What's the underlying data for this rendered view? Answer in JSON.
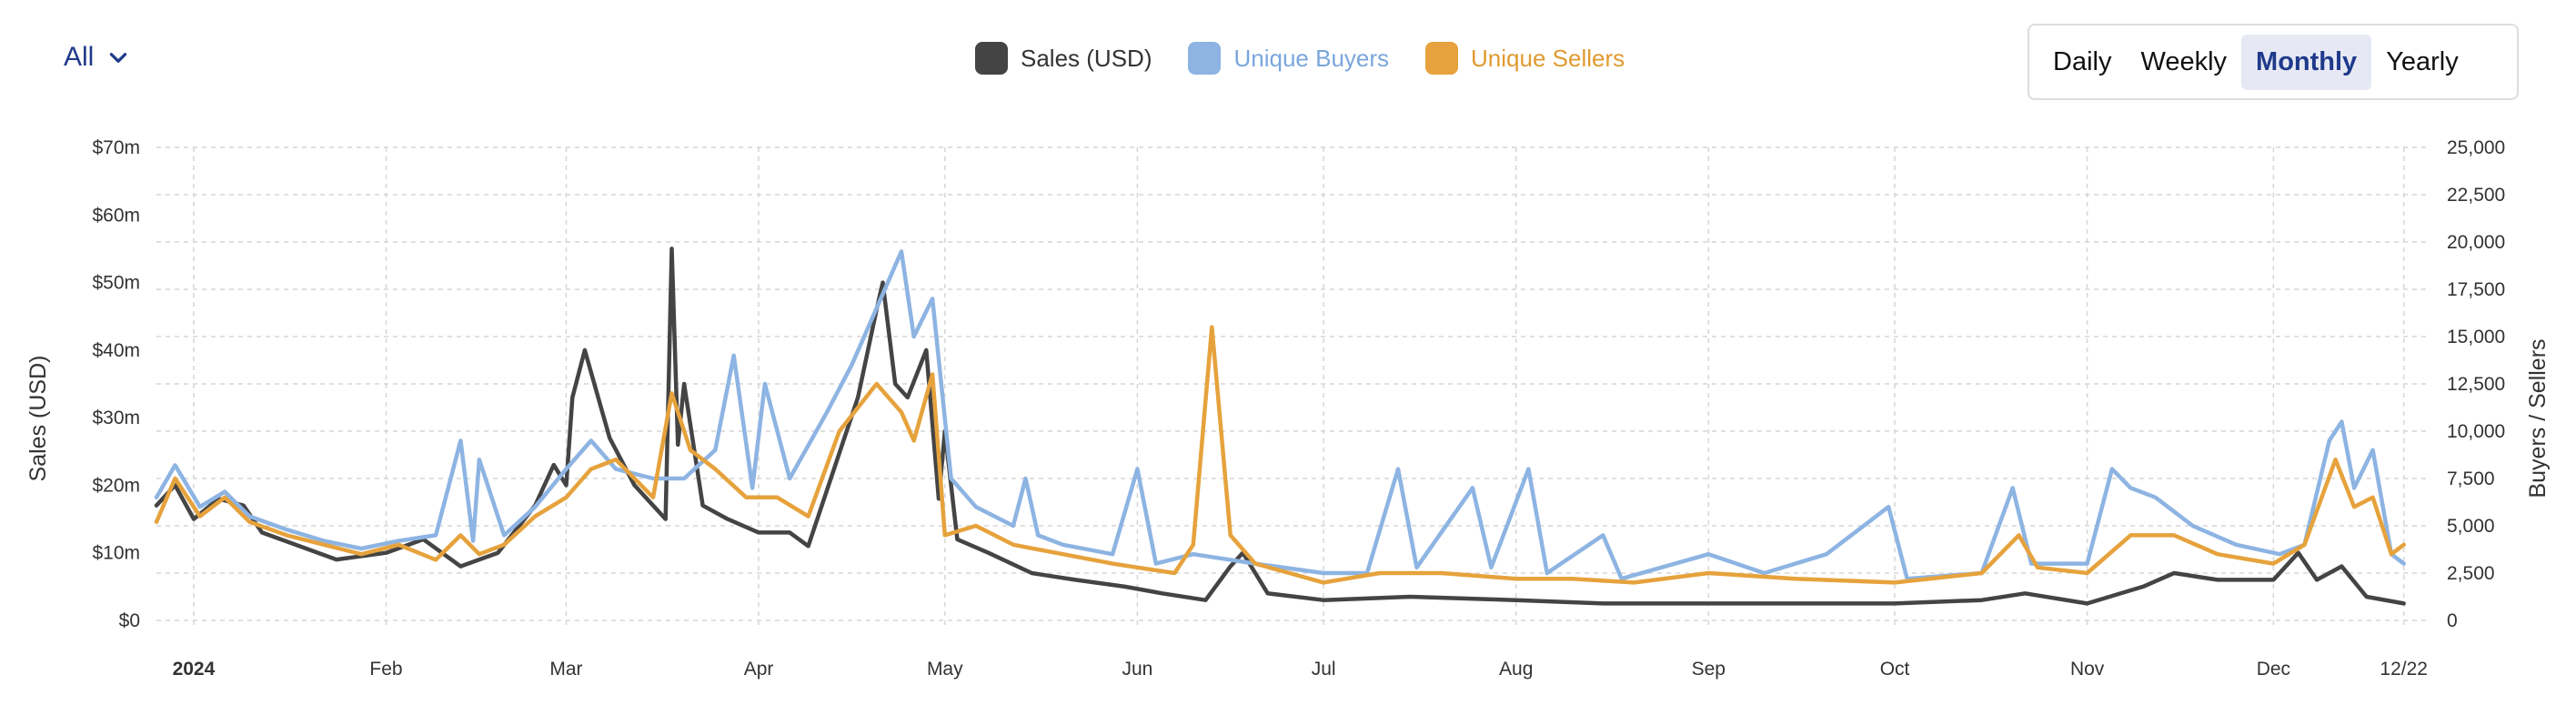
{
  "filter": {
    "label": "All"
  },
  "periods": [
    {
      "label": "Daily",
      "active": false
    },
    {
      "label": "Weekly",
      "active": false
    },
    {
      "label": "Monthly",
      "active": true
    },
    {
      "label": "Yearly",
      "active": false
    }
  ],
  "colors": {
    "sales": "#444444",
    "buyers": "#8db4e2",
    "sellers": "#e6a23c",
    "accent": "#1f3a8a"
  },
  "chart_data": {
    "type": "line",
    "xlabel": "",
    "ylabel_left": "Sales (USD)",
    "ylabel_right": "Buyers / Sellers",
    "ylim_left": [
      0,
      70
    ],
    "ylim_right": [
      0,
      25000
    ],
    "y_ticks_left": [
      "$0",
      "$10m",
      "$20m",
      "$30m",
      "$40m",
      "$50m",
      "$60m",
      "$70m"
    ],
    "y_ticks_right": [
      "0",
      "2,500",
      "5,000",
      "7,500",
      "10,000",
      "12,500",
      "15,000",
      "17,500",
      "20,000",
      "22,500",
      "25,000"
    ],
    "x_ticks": [
      {
        "label": "2024",
        "date": "2024-01-01",
        "bold": true
      },
      {
        "label": "Feb",
        "date": "2024-02-01"
      },
      {
        "label": "Mar",
        "date": "2024-03-01"
      },
      {
        "label": "Apr",
        "date": "2024-04-01"
      },
      {
        "label": "May",
        "date": "2024-05-01"
      },
      {
        "label": "Jun",
        "date": "2024-06-01"
      },
      {
        "label": "Jul",
        "date": "2024-07-01"
      },
      {
        "label": "Aug",
        "date": "2024-08-01"
      },
      {
        "label": "Sep",
        "date": "2024-09-01"
      },
      {
        "label": "Oct",
        "date": "2024-10-01"
      },
      {
        "label": "Nov",
        "date": "2024-11-01"
      },
      {
        "label": "Dec",
        "date": "2024-12-01"
      },
      {
        "label": "12/22",
        "date": "2024-12-22"
      }
    ],
    "x_range": [
      "2023-12-26",
      "2024-12-26"
    ],
    "grid": true,
    "legend": "top-center",
    "series": [
      {
        "name": "Sales (USD)",
        "axis": "left",
        "color": "#444444",
        "points": [
          [
            "2023-12-26",
            17
          ],
          [
            "2023-12-29",
            20
          ],
          [
            "2024-01-01",
            15
          ],
          [
            "2024-01-05",
            18
          ],
          [
            "2024-01-09",
            17
          ],
          [
            "2024-01-12",
            13
          ],
          [
            "2024-01-18",
            11
          ],
          [
            "2024-01-24",
            9
          ],
          [
            "2024-02-01",
            10
          ],
          [
            "2024-02-07",
            12
          ],
          [
            "2024-02-13",
            8
          ],
          [
            "2024-02-19",
            10
          ],
          [
            "2024-02-25",
            17
          ],
          [
            "2024-02-28",
            23
          ],
          [
            "2024-03-01",
            20
          ],
          [
            "2024-03-02",
            33
          ],
          [
            "2024-03-04",
            40
          ],
          [
            "2024-03-08",
            27
          ],
          [
            "2024-03-12",
            20
          ],
          [
            "2024-03-15",
            17
          ],
          [
            "2024-03-17",
            15
          ],
          [
            "2024-03-18",
            55
          ],
          [
            "2024-03-19",
            26
          ],
          [
            "2024-03-20",
            35
          ],
          [
            "2024-03-23",
            17
          ],
          [
            "2024-03-27",
            15
          ],
          [
            "2024-04-01",
            13
          ],
          [
            "2024-04-06",
            13
          ],
          [
            "2024-04-09",
            11
          ],
          [
            "2024-04-13",
            22
          ],
          [
            "2024-04-17",
            33
          ],
          [
            "2024-04-20",
            46
          ],
          [
            "2024-04-21",
            50
          ],
          [
            "2024-04-23",
            35
          ],
          [
            "2024-04-25",
            33
          ],
          [
            "2024-04-28",
            40
          ],
          [
            "2024-04-30",
            18
          ],
          [
            "2024-05-01",
            28
          ],
          [
            "2024-05-03",
            12
          ],
          [
            "2024-05-08",
            10
          ],
          [
            "2024-05-15",
            7
          ],
          [
            "2024-05-22",
            6
          ],
          [
            "2024-05-30",
            5
          ],
          [
            "2024-06-05",
            4
          ],
          [
            "2024-06-12",
            3
          ],
          [
            "2024-06-16",
            8
          ],
          [
            "2024-06-18",
            10
          ],
          [
            "2024-06-22",
            4
          ],
          [
            "2024-07-01",
            3
          ],
          [
            "2024-07-15",
            3.5
          ],
          [
            "2024-08-01",
            3
          ],
          [
            "2024-08-15",
            2.5
          ],
          [
            "2024-09-01",
            2.5
          ],
          [
            "2024-09-15",
            2.5
          ],
          [
            "2024-10-01",
            2.5
          ],
          [
            "2024-10-15",
            3
          ],
          [
            "2024-10-22",
            4
          ],
          [
            "2024-11-01",
            2.5
          ],
          [
            "2024-11-10",
            5
          ],
          [
            "2024-11-15",
            7
          ],
          [
            "2024-11-22",
            6
          ],
          [
            "2024-12-01",
            6
          ],
          [
            "2024-12-05",
            10
          ],
          [
            "2024-12-08",
            6
          ],
          [
            "2024-12-12",
            8
          ],
          [
            "2024-12-16",
            3.5
          ],
          [
            "2024-12-22",
            2.5
          ]
        ]
      },
      {
        "name": "Unique Buyers",
        "axis": "right",
        "color": "#8db4e2",
        "points": [
          [
            "2023-12-26",
            6500
          ],
          [
            "2023-12-29",
            8200
          ],
          [
            "2024-01-02",
            6000
          ],
          [
            "2024-01-06",
            6800
          ],
          [
            "2024-01-10",
            5500
          ],
          [
            "2024-01-16",
            4800
          ],
          [
            "2024-01-22",
            4200
          ],
          [
            "2024-01-28",
            3800
          ],
          [
            "2024-02-03",
            4200
          ],
          [
            "2024-02-09",
            4500
          ],
          [
            "2024-02-13",
            9500
          ],
          [
            "2024-02-15",
            4200
          ],
          [
            "2024-02-16",
            8500
          ],
          [
            "2024-02-20",
            4500
          ],
          [
            "2024-02-25",
            6000
          ],
          [
            "2024-03-01",
            8000
          ],
          [
            "2024-03-05",
            9500
          ],
          [
            "2024-03-09",
            8000
          ],
          [
            "2024-03-15",
            7500
          ],
          [
            "2024-03-20",
            7500
          ],
          [
            "2024-03-25",
            9000
          ],
          [
            "2024-03-28",
            14000
          ],
          [
            "2024-03-31",
            7000
          ],
          [
            "2024-04-02",
            12500
          ],
          [
            "2024-04-06",
            7500
          ],
          [
            "2024-04-12",
            11000
          ],
          [
            "2024-04-16",
            13500
          ],
          [
            "2024-04-20",
            16500
          ],
          [
            "2024-04-24",
            19500
          ],
          [
            "2024-04-26",
            15000
          ],
          [
            "2024-04-29",
            17000
          ],
          [
            "2024-05-02",
            7500
          ],
          [
            "2024-05-06",
            6000
          ],
          [
            "2024-05-12",
            5000
          ],
          [
            "2024-05-14",
            7500
          ],
          [
            "2024-05-16",
            4500
          ],
          [
            "2024-05-20",
            4000
          ],
          [
            "2024-05-28",
            3500
          ],
          [
            "2024-06-01",
            8000
          ],
          [
            "2024-06-04",
            3000
          ],
          [
            "2024-06-10",
            3500
          ],
          [
            "2024-06-20",
            3000
          ],
          [
            "2024-07-01",
            2500
          ],
          [
            "2024-07-08",
            2500
          ],
          [
            "2024-07-13",
            8000
          ],
          [
            "2024-07-16",
            2800
          ],
          [
            "2024-07-25",
            7000
          ],
          [
            "2024-07-28",
            2800
          ],
          [
            "2024-08-03",
            8000
          ],
          [
            "2024-08-06",
            2500
          ],
          [
            "2024-08-15",
            4500
          ],
          [
            "2024-08-18",
            2200
          ],
          [
            "2024-09-01",
            3500
          ],
          [
            "2024-09-10",
            2500
          ],
          [
            "2024-09-20",
            3500
          ],
          [
            "2024-09-30",
            6000
          ],
          [
            "2024-10-03",
            2200
          ],
          [
            "2024-10-15",
            2500
          ],
          [
            "2024-10-20",
            7000
          ],
          [
            "2024-10-23",
            3000
          ],
          [
            "2024-11-01",
            3000
          ],
          [
            "2024-11-05",
            8000
          ],
          [
            "2024-11-08",
            7000
          ],
          [
            "2024-11-12",
            6500
          ],
          [
            "2024-11-18",
            5000
          ],
          [
            "2024-11-25",
            4000
          ],
          [
            "2024-12-02",
            3500
          ],
          [
            "2024-12-06",
            4000
          ],
          [
            "2024-12-10",
            9500
          ],
          [
            "2024-12-12",
            10500
          ],
          [
            "2024-12-14",
            7000
          ],
          [
            "2024-12-17",
            9000
          ],
          [
            "2024-12-20",
            3500
          ],
          [
            "2024-12-22",
            3000
          ]
        ]
      },
      {
        "name": "Unique Sellers",
        "axis": "right",
        "color": "#e6a23c",
        "points": [
          [
            "2023-12-26",
            5200
          ],
          [
            "2023-12-29",
            7500
          ],
          [
            "2024-01-02",
            5500
          ],
          [
            "2024-01-06",
            6500
          ],
          [
            "2024-01-10",
            5200
          ],
          [
            "2024-01-16",
            4500
          ],
          [
            "2024-01-22",
            4000
          ],
          [
            "2024-01-28",
            3500
          ],
          [
            "2024-02-03",
            4000
          ],
          [
            "2024-02-09",
            3200
          ],
          [
            "2024-02-13",
            4500
          ],
          [
            "2024-02-16",
            3500
          ],
          [
            "2024-02-20",
            4000
          ],
          [
            "2024-02-25",
            5500
          ],
          [
            "2024-03-01",
            6500
          ],
          [
            "2024-03-05",
            8000
          ],
          [
            "2024-03-09",
            8500
          ],
          [
            "2024-03-15",
            6500
          ],
          [
            "2024-03-18",
            12000
          ],
          [
            "2024-03-21",
            9000
          ],
          [
            "2024-03-25",
            8000
          ],
          [
            "2024-03-30",
            6500
          ],
          [
            "2024-04-04",
            6500
          ],
          [
            "2024-04-09",
            5500
          ],
          [
            "2024-04-14",
            10000
          ],
          [
            "2024-04-20",
            12500
          ],
          [
            "2024-04-24",
            11000
          ],
          [
            "2024-04-26",
            9500
          ],
          [
            "2024-04-29",
            13000
          ],
          [
            "2024-05-01",
            4500
          ],
          [
            "2024-05-06",
            5000
          ],
          [
            "2024-05-12",
            4000
          ],
          [
            "2024-05-20",
            3500
          ],
          [
            "2024-05-28",
            3000
          ],
          [
            "2024-06-01",
            2800
          ],
          [
            "2024-06-07",
            2500
          ],
          [
            "2024-06-10",
            4000
          ],
          [
            "2024-06-13",
            15500
          ],
          [
            "2024-06-16",
            4500
          ],
          [
            "2024-06-20",
            3000
          ],
          [
            "2024-07-01",
            2000
          ],
          [
            "2024-07-10",
            2500
          ],
          [
            "2024-07-20",
            2500
          ],
          [
            "2024-08-01",
            2200
          ],
          [
            "2024-08-10",
            2200
          ],
          [
            "2024-08-20",
            2000
          ],
          [
            "2024-09-01",
            2500
          ],
          [
            "2024-09-15",
            2200
          ],
          [
            "2024-10-01",
            2000
          ],
          [
            "2024-10-15",
            2500
          ],
          [
            "2024-10-21",
            4500
          ],
          [
            "2024-10-24",
            2800
          ],
          [
            "2024-11-01",
            2500
          ],
          [
            "2024-11-08",
            4500
          ],
          [
            "2024-11-15",
            4500
          ],
          [
            "2024-11-22",
            3500
          ],
          [
            "2024-12-01",
            3000
          ],
          [
            "2024-12-06",
            4000
          ],
          [
            "2024-12-11",
            8500
          ],
          [
            "2024-12-14",
            6000
          ],
          [
            "2024-12-17",
            6500
          ],
          [
            "2024-12-20",
            3500
          ],
          [
            "2024-12-22",
            4000
          ]
        ]
      }
    ]
  }
}
